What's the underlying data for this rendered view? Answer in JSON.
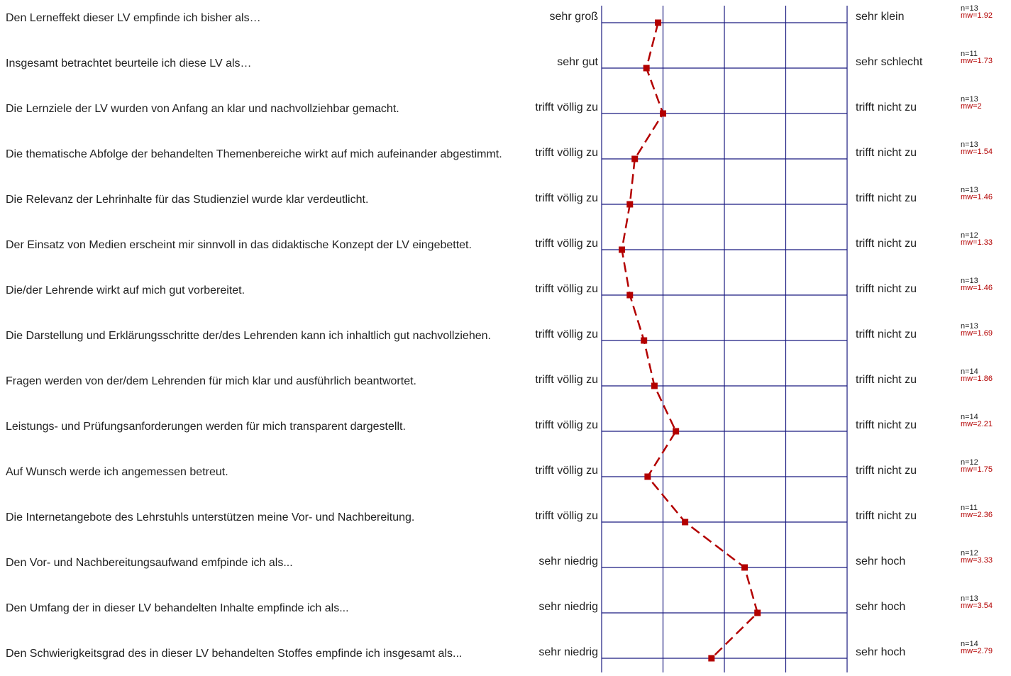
{
  "colors": {
    "axis": "#1a1a80",
    "series": "#b30000",
    "text": "#222222"
  },
  "chart_data": {
    "type": "line",
    "orientation": "profile",
    "scale": [
      1,
      5
    ],
    "grid": true,
    "items": [
      {
        "question": "Den Lerneffekt dieser LV empfinde ich bisher als…",
        "left_label": "sehr groß",
        "right_label": "sehr klein",
        "n": "n=13",
        "mw_text": "mw=1.92",
        "mw": 1.92
      },
      {
        "question": "Insgesamt betrachtet beurteile ich diese LV als…",
        "left_label": "sehr gut",
        "right_label": "sehr schlecht",
        "n": "n=11",
        "mw_text": "mw=1.73",
        "mw": 1.73
      },
      {
        "question": "Die Lernziele der LV wurden von Anfang an klar und nachvollziehbar gemacht.",
        "left_label": "trifft völlig zu",
        "right_label": "trifft nicht zu",
        "n": "n=13",
        "mw_text": "mw=2",
        "mw": 2
      },
      {
        "question": "Die thematische Abfolge der behandelten Themenbereiche wirkt auf mich aufeinander abgestimmt.",
        "left_label": "trifft völlig zu",
        "right_label": "trifft nicht zu",
        "n": "n=13",
        "mw_text": "mw=1.54",
        "mw": 1.54
      },
      {
        "question": "Die Relevanz der Lehrinhalte für das Studienziel wurde klar verdeutlicht.",
        "left_label": "trifft völlig zu",
        "right_label": "trifft nicht zu",
        "n": "n=13",
        "mw_text": "mw=1.46",
        "mw": 1.46
      },
      {
        "question": "Der Einsatz von Medien erscheint mir sinnvoll in das didaktische Konzept der LV eingebettet.",
        "left_label": "trifft völlig zu",
        "right_label": "trifft nicht zu",
        "n": "n=12",
        "mw_text": "mw=1.33",
        "mw": 1.33
      },
      {
        "question": "Die/der Lehrende wirkt auf mich gut vorbereitet.",
        "left_label": "trifft völlig zu",
        "right_label": "trifft nicht zu",
        "n": "n=13",
        "mw_text": "mw=1.46",
        "mw": 1.46
      },
      {
        "question": "Die Darstellung und Erklärungsschritte der/des Lehrenden kann ich inhaltlich gut nachvollziehen.",
        "left_label": "trifft völlig zu",
        "right_label": "trifft nicht zu",
        "n": "n=13",
        "mw_text": "mw=1.69",
        "mw": 1.69
      },
      {
        "question": "Fragen werden von der/dem Lehrenden für mich klar und ausführlich beantwortet.",
        "left_label": "trifft völlig zu",
        "right_label": "trifft nicht zu",
        "n": "n=14",
        "mw_text": "mw=1.86",
        "mw": 1.86
      },
      {
        "question": "Leistungs- und Prüfungsanforderungen werden für mich transparent dargestellt.",
        "left_label": "trifft völlig zu",
        "right_label": "trifft nicht zu",
        "n": "n=14",
        "mw_text": "mw=2.21",
        "mw": 2.21
      },
      {
        "question": "Auf Wunsch werde ich angemessen betreut.",
        "left_label": "trifft völlig zu",
        "right_label": "trifft nicht zu",
        "n": "n=12",
        "mw_text": "mw=1.75",
        "mw": 1.75
      },
      {
        "question": "Die Internetangebote des Lehrstuhls unterstützen meine Vor- und Nachbereitung.",
        "left_label": "trifft völlig zu",
        "right_label": "trifft nicht zu",
        "n": "n=11",
        "mw_text": "mw=2.36",
        "mw": 2.36
      },
      {
        "question": "Den Vor- und Nachbereitungsaufwand  emfpinde ich als...",
        "left_label": "sehr niedrig",
        "right_label": "sehr hoch",
        "n": "n=12",
        "mw_text": "mw=3.33",
        "mw": 3.33
      },
      {
        "question": "Den Umfang der in dieser LV behandelten Inhalte empfinde ich als...",
        "left_label": "sehr niedrig",
        "right_label": "sehr hoch",
        "n": "n=13",
        "mw_text": "mw=3.54",
        "mw": 3.54
      },
      {
        "question": "Den Schwierigkeitsgrad des in dieser LV behandelten Stoffes empfinde ich insgesamt als...",
        "left_label": "sehr niedrig",
        "right_label": "sehr hoch",
        "n": "n=14",
        "mw_text": "mw=2.79",
        "mw": 2.79
      }
    ]
  }
}
